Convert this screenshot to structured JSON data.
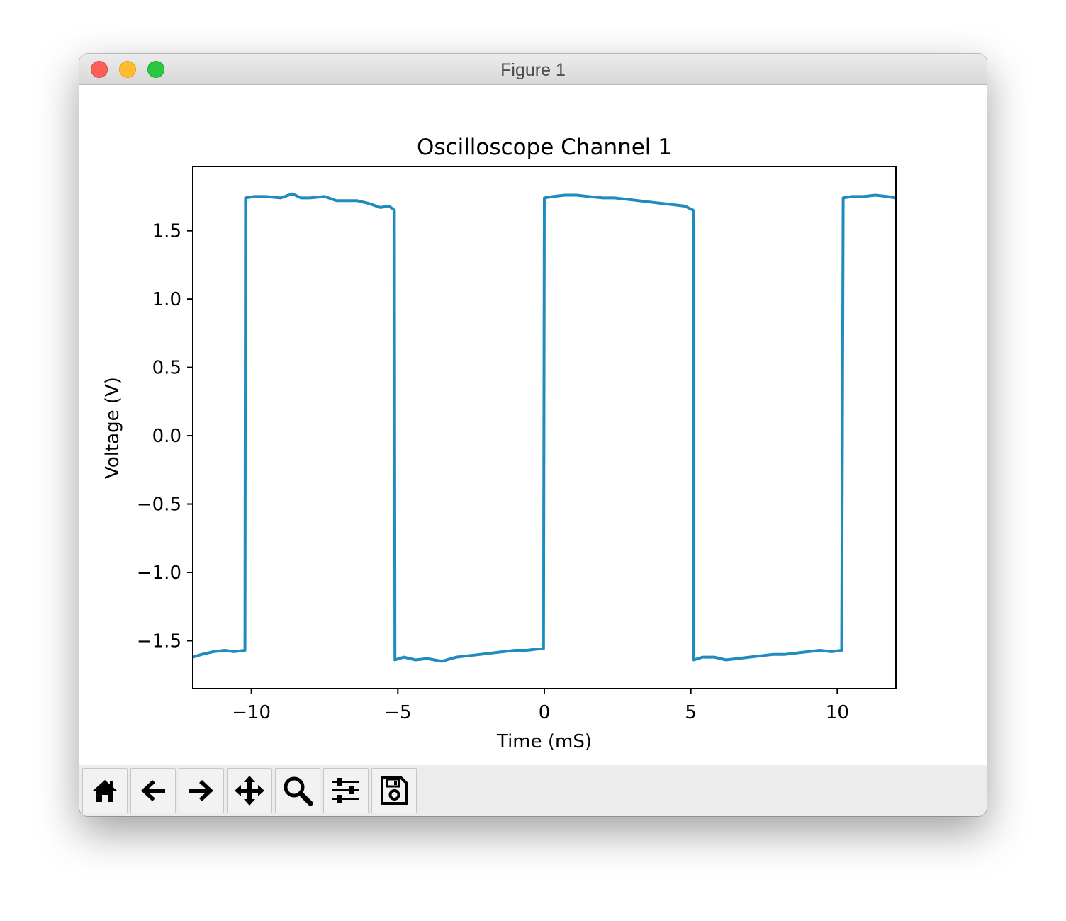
{
  "window": {
    "title": "Figure 1"
  },
  "toolbar": {
    "buttons": [
      {
        "name": "home-button",
        "icon": "home-icon"
      },
      {
        "name": "back-button",
        "icon": "arrow-left-icon"
      },
      {
        "name": "forward-button",
        "icon": "arrow-right-icon"
      },
      {
        "name": "pan-button",
        "icon": "move-icon"
      },
      {
        "name": "zoom-button",
        "icon": "magnifier-icon"
      },
      {
        "name": "configure-subplots-button",
        "icon": "sliders-icon"
      },
      {
        "name": "save-button",
        "icon": "floppy-disk-icon"
      }
    ]
  },
  "chart_data": {
    "type": "line",
    "title": "Oscilloscope Channel 1",
    "xlabel": "Time (mS)",
    "ylabel": "Voltage (V)",
    "xlim": [
      -12,
      12
    ],
    "ylim": [
      -1.85,
      1.97
    ],
    "xticks": [
      -10,
      -5,
      0,
      5,
      10
    ],
    "xtick_labels": [
      "−10",
      "−5",
      "0",
      "5",
      "10"
    ],
    "yticks": [
      1.5,
      1.0,
      0.5,
      0.0,
      -0.5,
      -1.0,
      -1.5
    ],
    "ytick_labels": [
      "1.5",
      "1.0",
      "0.5",
      "0.0",
      "−0.5",
      "−1.0",
      "−1.5"
    ],
    "grid": false,
    "color": "#1f8bbf",
    "series": [
      {
        "x": [
          -12,
          -11.7,
          -11.3,
          -10.9,
          -10.6,
          -10.22,
          -10.2,
          -9.9,
          -9.5,
          -9.0,
          -8.6,
          -8.3,
          -8.0,
          -7.5,
          -7.1,
          -6.8,
          -6.4,
          -6.0,
          -5.6,
          -5.3,
          -5.12,
          -5.1,
          -4.8,
          -4.4,
          -4.0,
          -3.5,
          -3.0,
          -2.6,
          -2.2,
          -1.8,
          -1.4,
          -1.0,
          -0.6,
          -0.2,
          -0.03,
          0.0,
          0.3,
          0.7,
          1.1,
          1.5,
          2.0,
          2.4,
          2.8,
          3.2,
          3.6,
          4.0,
          4.4,
          4.8,
          5.08,
          5.1,
          5.4,
          5.8,
          6.2,
          6.6,
          7.0,
          7.4,
          7.8,
          8.2,
          8.6,
          9.0,
          9.4,
          9.8,
          10.15,
          10.2,
          10.5,
          10.9,
          11.3,
          11.7,
          12
        ],
        "y": [
          -1.62,
          -1.6,
          -1.58,
          -1.57,
          -1.58,
          -1.57,
          1.74,
          1.75,
          1.75,
          1.74,
          1.77,
          1.74,
          1.74,
          1.75,
          1.72,
          1.72,
          1.72,
          1.7,
          1.67,
          1.68,
          1.65,
          -1.64,
          -1.62,
          -1.64,
          -1.63,
          -1.65,
          -1.62,
          -1.61,
          -1.6,
          -1.59,
          -1.58,
          -1.57,
          -1.57,
          -1.56,
          -1.56,
          1.74,
          1.75,
          1.76,
          1.76,
          1.75,
          1.74,
          1.74,
          1.73,
          1.72,
          1.71,
          1.7,
          1.69,
          1.68,
          1.65,
          -1.64,
          -1.62,
          -1.62,
          -1.64,
          -1.63,
          -1.62,
          -1.61,
          -1.6,
          -1.6,
          -1.59,
          -1.58,
          -1.57,
          -1.58,
          -1.57,
          1.74,
          1.75,
          1.75,
          1.76,
          1.75,
          1.74
        ]
      }
    ]
  }
}
